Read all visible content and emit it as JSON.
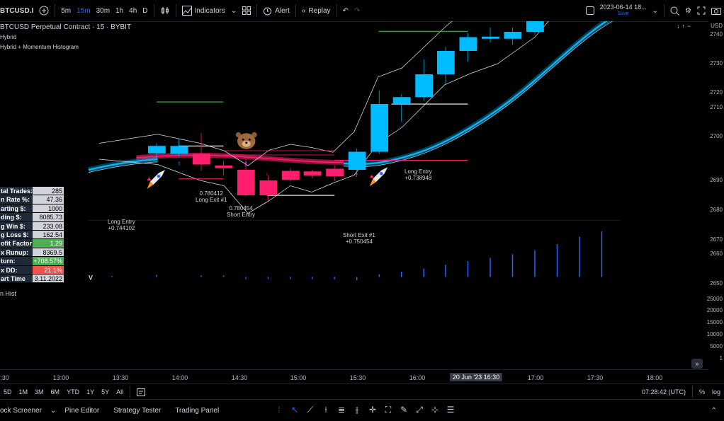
{
  "toolbar": {
    "symbol": "BTCUSD.I",
    "intervals": [
      "5m",
      "15m",
      "30m",
      "1h",
      "4h",
      "D"
    ],
    "active_interval": "15m",
    "indicators_label": "Indicators",
    "alert_label": "Alert",
    "replay_label": "Replay",
    "datetime": "2023-06-14 18...",
    "save_label": "Save"
  },
  "legend": {
    "title": "BTCUSD Perpetual Contract · 15 · BYBIT",
    "line1": "Hybrid",
    "line2": "Hybrid + Momentum Histogram"
  },
  "stats": [
    {
      "k": "tal Trades:",
      "v": "285"
    },
    {
      "k": "n Rate %:",
      "v": "47.36"
    },
    {
      "k": "arting $:",
      "v": "1000"
    },
    {
      "k": "ding $:",
      "v": "8085.73"
    },
    {
      "k": "g Win $:",
      "v": "233.08"
    },
    {
      "k": "g Loss $:",
      "v": "162.54"
    },
    {
      "k": "ofit Factor:",
      "v": "1.29",
      "c": "green"
    },
    {
      "k": "x Runup:",
      "v": "8369.5"
    },
    {
      "k": "turn:",
      "v": "+708.57%",
      "c": "green"
    },
    {
      "k": "x DD:",
      "v": "21.1%",
      "c": "red"
    },
    {
      "k": "art Time",
      "v": "3.11.2022"
    }
  ],
  "annotations": {
    "long_entry_1": "Long Entry",
    "long_entry_1_val": "+0.744102",
    "long_exit": "Long Exit #1",
    "long_exit_val": "0.780412",
    "short_entry": "Short Entry",
    "short_entry_val": "0.780454",
    "short_exit": "Short Exit #1",
    "short_exit_val": "+0.750454",
    "long_entry_2": "Long Entry",
    "long_entry_2_val": "+0.738948"
  },
  "price_axis": {
    "currency": "USD",
    "ticks": [
      "2740",
      "2730",
      "2720",
      "2710",
      "2700",
      "2690",
      "2680",
      "2670",
      "2660",
      "2650"
    ],
    "hist_ticks": [
      "25000",
      "20000",
      "15000",
      "10000",
      "5000",
      "1"
    ]
  },
  "hist_label": "n Hist",
  "time_axis": {
    "labels": [
      "2:30",
      "13:00",
      "13:30",
      "14:00",
      "14:30",
      "15:00",
      "15:30",
      "16:00",
      "16:30",
      "17:00",
      "17:30",
      "18:00"
    ],
    "cursor": "20 Jun '23  16:30"
  },
  "bottom": {
    "ranges": [
      "5D",
      "1M",
      "3M",
      "6M",
      "YTD",
      "1Y",
      "5Y",
      "All"
    ],
    "clock": "07:28:42 (UTC)",
    "pct": "%",
    "log": "log"
  },
  "panels": [
    "ock Screener",
    "Pine Editor",
    "Strategy Tester",
    "Trading Panel"
  ],
  "colors": {
    "bull": "#00bcff",
    "bear": "#ff1e6e",
    "accent": "#2962ff"
  }
}
